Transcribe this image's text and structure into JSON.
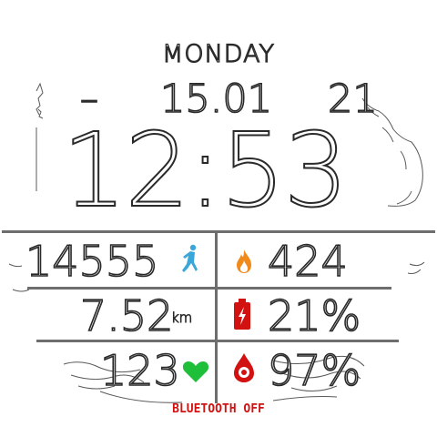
{
  "date": {
    "weekday": "MONDAY",
    "dash": "–",
    "day_month": "15.01",
    "year": "21"
  },
  "time": {
    "display": "12:53"
  },
  "stats": {
    "steps": "14555",
    "calories": "424",
    "distance": "7.52",
    "distance_unit": "km",
    "battery": "21%",
    "heart_rate": "123",
    "spo2": "97%"
  },
  "status": {
    "bluetooth": "BLUETOOTH OFF"
  },
  "icons": {
    "steps": "running-person-icon",
    "calories": "flame-icon",
    "battery": "battery-charging-icon",
    "heart_rate": "heart-icon",
    "spo2": "blood-drop-icon"
  },
  "colors": {
    "steps_icon": "#3aa7d8",
    "calories_icon": "#f08a1a",
    "battery_icon": "#d21111",
    "heart_icon": "#1fbf3a",
    "spo2_icon": "#d21111",
    "bluetooth_status": "#d21111",
    "divider": "#6e6e6e"
  }
}
